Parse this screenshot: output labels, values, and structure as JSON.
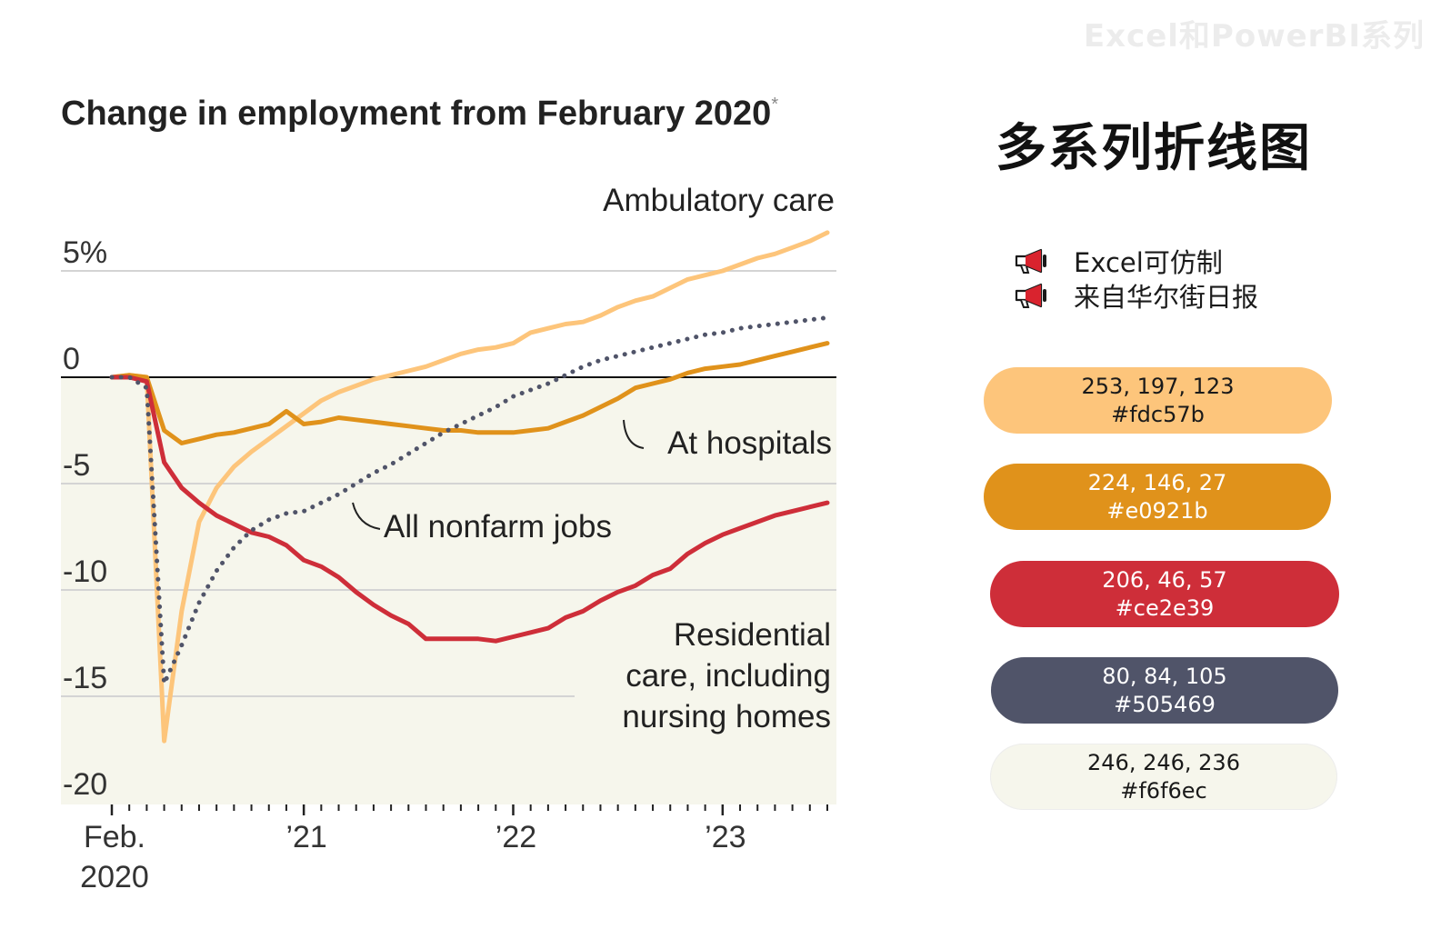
{
  "watermark": "Excel和PowerBI系列",
  "side_title": "多系列折线图",
  "notes": [
    {
      "icon": "megaphone-icon",
      "text": "Excel可仿制"
    },
    {
      "icon": "megaphone-icon",
      "text": "来自华尔街日报"
    }
  ],
  "palette": [
    {
      "rgb": "253, 197, 123",
      "hex": "#fdc57b",
      "text_color": "#1a1a1a"
    },
    {
      "rgb": "224, 146, 27",
      "hex": "#e0921b",
      "text_color": "#ffffff"
    },
    {
      "rgb": "206, 46, 57",
      "hex": "#ce2e39",
      "text_color": "#ffffff"
    },
    {
      "rgb": "80, 84, 105",
      "hex": "#505469",
      "text_color": "#ffffff"
    },
    {
      "rgb": "246, 246, 236",
      "hex": "#f6f6ec",
      "text_color": "#1a1a1a"
    }
  ],
  "chart_data": {
    "type": "line",
    "title": "Change in employment from February 2020",
    "title_mark": "*",
    "ylim": [
      -20,
      6
    ],
    "y_ticks": [
      {
        "value": 5,
        "label": "5%"
      },
      {
        "value": 0,
        "label": "0"
      },
      {
        "value": -5,
        "label": "-5"
      },
      {
        "value": -10,
        "label": "-10"
      },
      {
        "value": -15,
        "label": "-15"
      },
      {
        "value": -20,
        "label": "-20"
      }
    ],
    "x_range": [
      0,
      41
    ],
    "x_tick_labels": [
      {
        "month": 0,
        "lines": [
          "Feb.",
          "2020"
        ]
      },
      {
        "month": 11,
        "lines": [
          "’21"
        ]
      },
      {
        "month": 23,
        "lines": [
          "’22"
        ]
      },
      {
        "month": 35,
        "lines": [
          "’23"
        ]
      }
    ],
    "background": "#f6f6ec",
    "series": [
      {
        "name": "Ambulatory care",
        "color": "#fdc57b",
        "style": "solid",
        "values": [
          0,
          0.1,
          0,
          -17.1,
          -11,
          -6.8,
          -5.2,
          -4.2,
          -3.5,
          -2.9,
          -2.3,
          -1.7,
          -1.1,
          -0.7,
          -0.4,
          -0.1,
          0.1,
          0.3,
          0.5,
          0.8,
          1.1,
          1.3,
          1.4,
          1.6,
          2.1,
          2.3,
          2.5,
          2.6,
          2.9,
          3.3,
          3.6,
          3.8,
          4.2,
          4.6,
          4.8,
          5.0,
          5.3,
          5.6,
          5.8,
          6.1,
          6.4,
          6.8
        ]
      },
      {
        "name": "At hospitals",
        "color": "#e0921b",
        "style": "solid",
        "values": [
          0,
          0.1,
          0,
          -2.5,
          -3.1,
          -2.9,
          -2.7,
          -2.6,
          -2.4,
          -2.2,
          -1.6,
          -2.2,
          -2.1,
          -1.9,
          -2.0,
          -2.1,
          -2.2,
          -2.3,
          -2.4,
          -2.5,
          -2.5,
          -2.6,
          -2.6,
          -2.6,
          -2.5,
          -2.4,
          -2.1,
          -1.8,
          -1.4,
          -1.0,
          -0.5,
          -0.3,
          -0.1,
          0.2,
          0.4,
          0.5,
          0.6,
          0.8,
          1.0,
          1.2,
          1.4,
          1.6
        ]
      },
      {
        "name": "Residential care, including nursing homes",
        "color": "#ce2e39",
        "style": "solid",
        "values": [
          0,
          0,
          -0.2,
          -4.0,
          -5.2,
          -5.9,
          -6.5,
          -6.9,
          -7.3,
          -7.5,
          -7.9,
          -8.6,
          -8.9,
          -9.4,
          -10.1,
          -10.7,
          -11.2,
          -11.6,
          -12.3,
          -12.3,
          -12.3,
          -12.3,
          -12.4,
          -12.2,
          -12.0,
          -11.8,
          -11.3,
          -11.0,
          -10.5,
          -10.1,
          -9.8,
          -9.3,
          -9.0,
          -8.3,
          -7.8,
          -7.4,
          -7.1,
          -6.8,
          -6.5,
          -6.3,
          -6.1,
          -5.9
        ]
      },
      {
        "name": "All nonfarm jobs",
        "color": "#505469",
        "style": "dotted",
        "values": [
          0,
          0,
          -0.5,
          -14.4,
          -12.6,
          -10.6,
          -9.1,
          -8.0,
          -7.2,
          -6.7,
          -6.4,
          -6.3,
          -5.9,
          -5.5,
          -5.0,
          -4.5,
          -4.1,
          -3.6,
          -3.1,
          -2.6,
          -2.2,
          -1.8,
          -1.4,
          -0.9,
          -0.6,
          -0.3,
          0.1,
          0.5,
          0.8,
          1.0,
          1.2,
          1.4,
          1.6,
          1.8,
          2.0,
          2.1,
          2.3,
          2.4,
          2.5,
          2.6,
          2.7,
          2.8
        ]
      }
    ],
    "annotations": [
      {
        "series": 0,
        "lines": [
          "Ambulatory care"
        ]
      },
      {
        "series": 1,
        "lines": [
          "At hospitals"
        ]
      },
      {
        "series": 3,
        "lines": [
          "All nonfarm jobs"
        ]
      },
      {
        "series": 2,
        "lines": [
          "Residential",
          "care, including",
          "nursing homes"
        ]
      }
    ]
  }
}
